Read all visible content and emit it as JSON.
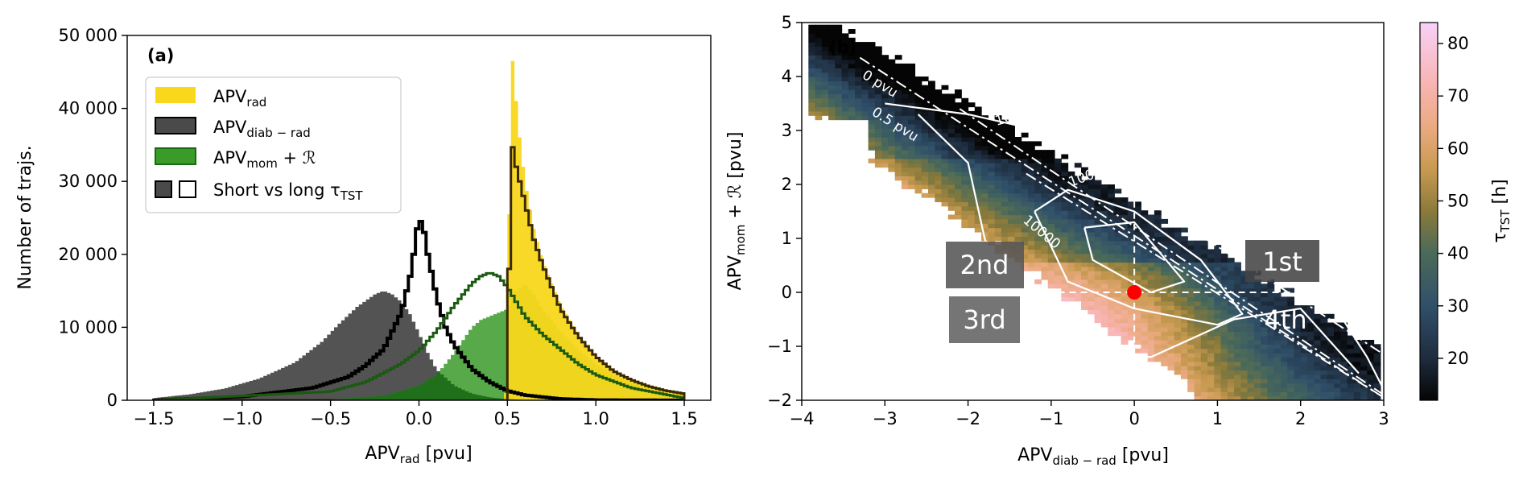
{
  "chart_data": [
    {
      "type": "histogram",
      "panel_label": "(a)",
      "xlabel": "APV",
      "xlabel_sub": "rad",
      "xlabel_unit": " [pvu]",
      "ylabel": "Number of trajs.",
      "xlim": [
        -1.65,
        1.65
      ],
      "ylim": [
        0,
        50000
      ],
      "xticks": [
        -1.5,
        -1.0,
        -0.5,
        0.0,
        0.5,
        1.0,
        1.5
      ],
      "xtick_labels": [
        "−1.5",
        "−1.0",
        "−0.5",
        "0.0",
        "0.5",
        "1.0",
        "1.5"
      ],
      "yticks": [
        0,
        10000,
        20000,
        30000,
        40000,
        50000
      ],
      "ytick_labels": [
        "0",
        "10 000",
        "20 000",
        "30 000",
        "40 000",
        "50 000"
      ],
      "legend": {
        "placement": "upper-left",
        "entries": [
          {
            "main": "APV",
            "sub": "rad",
            "suffix": "",
            "color": "#f9d71c",
            "style": "filled"
          },
          {
            "main": "APV",
            "sub": "diab − rad",
            "suffix": "",
            "color": "#4a4a4a",
            "style": "filled"
          },
          {
            "main": "APV",
            "sub": "mom",
            "suffix": " + ℛ",
            "color": "#3a9a2a",
            "style": "filled"
          },
          {
            "main": "Short vs long τ",
            "sub": "TST",
            "suffix": "",
            "color": "#4a4a4a",
            "style": "pair"
          }
        ]
      },
      "series": [
        {
          "name": "APVrad",
          "color": "#f9d71c",
          "style": "filled",
          "points": [
            [
              0.48,
              0
            ],
            [
              0.5,
              2000
            ],
            [
              0.52,
              49000
            ],
            [
              0.54,
              44000
            ],
            [
              0.56,
              38000
            ],
            [
              0.58,
              34000
            ],
            [
              0.6,
              30000
            ],
            [
              0.65,
              23500
            ],
            [
              0.7,
              19000
            ],
            [
              0.8,
              13000
            ],
            [
              0.9,
              9000
            ],
            [
              1.0,
              6000
            ],
            [
              1.1,
              4000
            ],
            [
              1.2,
              2800
            ],
            [
              1.3,
              1900
            ],
            [
              1.4,
              1300
            ],
            [
              1.5,
              900
            ]
          ]
        },
        {
          "name": "APVdiab-rad",
          "color": "#4a4a4a",
          "style": "filled",
          "points": [
            [
              -1.5,
              300
            ],
            [
              -1.3,
              800
            ],
            [
              -1.1,
              1600
            ],
            [
              -0.9,
              3000
            ],
            [
              -0.7,
              5200
            ],
            [
              -0.55,
              8000
            ],
            [
              -0.45,
              10500
            ],
            [
              -0.35,
              12800
            ],
            [
              -0.25,
              14500
            ],
            [
              -0.2,
              15000
            ],
            [
              -0.15,
              14500
            ],
            [
              -0.1,
              13500
            ],
            [
              -0.05,
              11800
            ],
            [
              0.0,
              9200
            ],
            [
              0.05,
              6500
            ],
            [
              0.1,
              4200
            ],
            [
              0.2,
              2000
            ],
            [
              0.3,
              900
            ],
            [
              0.4,
              400
            ],
            [
              0.5,
              150
            ],
            [
              0.6,
              60
            ],
            [
              0.8,
              20
            ],
            [
              1.0,
              0
            ]
          ]
        },
        {
          "name": "APVmom+R",
          "color": "#3a9a2a",
          "style": "filled",
          "points": [
            [
              -0.5,
              100
            ],
            [
              -0.2,
              600
            ],
            [
              0.0,
              2000
            ],
            [
              0.1,
              3500
            ],
            [
              0.2,
              6500
            ],
            [
              0.3,
              10000
            ],
            [
              0.35,
              11000
            ],
            [
              0.4,
              11500
            ],
            [
              0.45,
              12000
            ],
            [
              0.5,
              12500
            ],
            [
              0.55,
              15000
            ],
            [
              0.6,
              16000
            ],
            [
              0.65,
              14500
            ],
            [
              0.7,
              12500
            ],
            [
              0.8,
              9500
            ],
            [
              0.9,
              7000
            ],
            [
              1.0,
              5000
            ],
            [
              1.1,
              3500
            ],
            [
              1.2,
              2400
            ],
            [
              1.3,
              1600
            ],
            [
              1.4,
              1000
            ],
            [
              1.5,
              700
            ]
          ]
        },
        {
          "name": "long-diab",
          "color": "#000000",
          "style": "step",
          "points": [
            [
              -1.5,
              0
            ],
            [
              -1.0,
              500
            ],
            [
              -0.6,
              1700
            ],
            [
              -0.4,
              3200
            ],
            [
              -0.3,
              4800
            ],
            [
              -0.2,
              7000
            ],
            [
              -0.1,
              12000
            ],
            [
              -0.05,
              17000
            ],
            [
              -0.03,
              20000
            ],
            [
              -0.01,
              23500
            ],
            [
              0.01,
              24500
            ],
            [
              0.03,
              23000
            ],
            [
              0.05,
              20000
            ],
            [
              0.08,
              16500
            ],
            [
              0.1,
              14000
            ],
            [
              0.15,
              10000
            ],
            [
              0.2,
              7500
            ],
            [
              0.3,
              4300
            ],
            [
              0.4,
              2500
            ],
            [
              0.5,
              1300
            ],
            [
              0.6,
              700
            ],
            [
              0.8,
              200
            ],
            [
              1.0,
              50
            ],
            [
              1.5,
              0
            ]
          ]
        },
        {
          "name": "long-mom",
          "color": "#1a5a10",
          "style": "step",
          "points": [
            [
              -1.5,
              0
            ],
            [
              -0.5,
              1200
            ],
            [
              -0.3,
              2500
            ],
            [
              -0.1,
              5000
            ],
            [
              0.0,
              6800
            ],
            [
              0.1,
              9500
            ],
            [
              0.2,
              13000
            ],
            [
              0.3,
              16000
            ],
            [
              0.35,
              17000
            ],
            [
              0.4,
              17500
            ],
            [
              0.45,
              17000
            ],
            [
              0.5,
              15500
            ],
            [
              0.55,
              13500
            ],
            [
              0.6,
              11500
            ],
            [
              0.7,
              9000
            ],
            [
              0.8,
              7000
            ],
            [
              0.9,
              5000
            ],
            [
              1.0,
              3500
            ],
            [
              1.2,
              1700
            ],
            [
              1.5,
              300
            ]
          ]
        },
        {
          "name": "long-rad",
          "color": "#3a2800",
          "style": "step",
          "points": [
            [
              0.5,
              0
            ],
            [
              0.52,
              36000
            ],
            [
              0.55,
              32000
            ],
            [
              0.58,
              29000
            ],
            [
              0.6,
              27000
            ],
            [
              0.65,
              22000
            ],
            [
              0.7,
              18500
            ],
            [
              0.8,
              12500
            ],
            [
              0.9,
              8800
            ],
            [
              1.0,
              6000
            ],
            [
              1.1,
              4000
            ],
            [
              1.2,
              2800
            ],
            [
              1.3,
              1900
            ],
            [
              1.4,
              1300
            ],
            [
              1.5,
              900
            ]
          ]
        }
      ]
    },
    {
      "type": "heatmap",
      "panel_label": "(b)",
      "xlabel": "APV",
      "xlabel_sub": "diab − rad",
      "xlabel_unit": " [pvu]",
      "ylabel": "APV",
      "ylabel_sub": "mom",
      "ylabel_suffix": " + ℛ [pvu]",
      "xlim": [
        -4,
        3
      ],
      "ylim": [
        -2,
        5
      ],
      "xticks": [
        -4,
        -3,
        -2,
        -1,
        0,
        1,
        2,
        3
      ],
      "xtick_labels": [
        "−4",
        "−3",
        "−2",
        "−1",
        "0",
        "1",
        "2",
        "3"
      ],
      "yticks": [
        -2,
        -1,
        0,
        1,
        2,
        3,
        4,
        5
      ],
      "ytick_labels": [
        "−2",
        "−1",
        "0",
        "1",
        "2",
        "3",
        "4",
        "5"
      ],
      "colorbar": {
        "label": "τ",
        "label_sub": "TST",
        "label_suffix": " [h]",
        "range": [
          12,
          84
        ],
        "ticks": [
          20,
          30,
          40,
          50,
          60,
          70,
          80
        ],
        "stops": [
          [
            12,
            "#050505"
          ],
          [
            20,
            "#1e2c3e"
          ],
          [
            30,
            "#30506a"
          ],
          [
            40,
            "#4a6a5a"
          ],
          [
            48,
            "#8a7a3a"
          ],
          [
            56,
            "#c89a50"
          ],
          [
            64,
            "#eaaa80"
          ],
          [
            72,
            "#f8b4b0"
          ],
          [
            84,
            "#f8d0f8"
          ]
        ]
      },
      "contour_levels": [
        "100",
        "1000",
        "10000"
      ],
      "reference_lines": [
        "0 pvu",
        "0.5 pvu"
      ],
      "quadrants": [
        "1st",
        "2nd",
        "3rd",
        "4th"
      ],
      "marker": {
        "x": 0,
        "y": 0,
        "color": "#ff0000"
      }
    }
  ]
}
